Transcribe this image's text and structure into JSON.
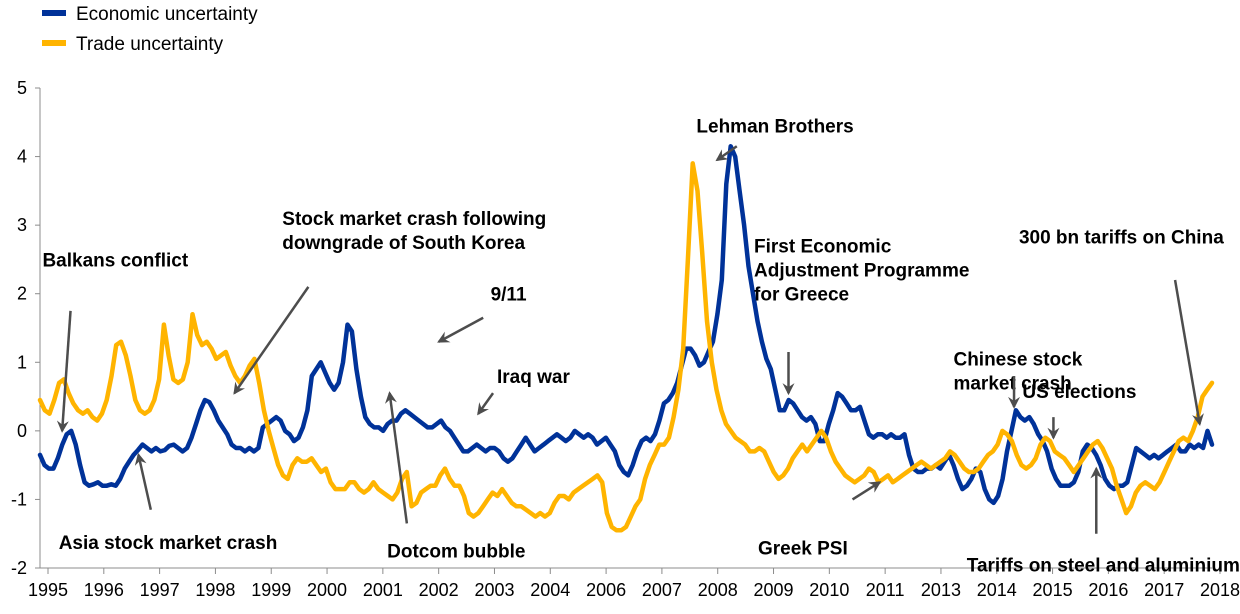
{
  "chart_data": {
    "type": "line",
    "title": "",
    "xlabel": "",
    "ylabel": "",
    "ylim": [
      -2,
      5
    ],
    "yticks": [
      -2,
      -1,
      0,
      1,
      2,
      3,
      4,
      5
    ],
    "xticks": [
      "1995",
      "1996",
      "1997",
      "1998",
      "1999",
      "2000",
      "2001",
      "2002",
      "2003",
      "2004",
      "2006",
      "2007",
      "2008",
      "2009",
      "2010",
      "2011",
      "2013",
      "2014",
      "2015",
      "2016",
      "2017",
      "2018"
    ],
    "legend_position": "top-left",
    "grid": false,
    "series": [
      {
        "name": "Economic uncertainty",
        "color": "#003299",
        "values": [
          -0.35,
          -0.5,
          -0.55,
          -0.55,
          -0.4,
          -0.2,
          -0.05,
          0.0,
          -0.2,
          -0.5,
          -0.75,
          -0.8,
          -0.78,
          -0.75,
          -0.8,
          -0.8,
          -0.78,
          -0.8,
          -0.7,
          -0.55,
          -0.45,
          -0.35,
          -0.28,
          -0.2,
          -0.25,
          -0.3,
          -0.25,
          -0.3,
          -0.28,
          -0.22,
          -0.2,
          -0.25,
          -0.3,
          -0.25,
          -0.1,
          0.1,
          0.3,
          0.45,
          0.42,
          0.3,
          0.15,
          0.05,
          -0.05,
          -0.2,
          -0.25,
          -0.25,
          -0.3,
          -0.25,
          -0.3,
          -0.25,
          0.05,
          0.1,
          0.15,
          0.2,
          0.15,
          0.0,
          -0.05,
          -0.15,
          -0.1,
          0.05,
          0.3,
          0.8,
          0.9,
          1.0,
          0.85,
          0.7,
          0.6,
          0.7,
          1.0,
          1.55,
          1.45,
          0.9,
          0.5,
          0.2,
          0.1,
          0.05,
          0.05,
          0.0,
          0.1,
          0.15,
          0.15,
          0.25,
          0.3,
          0.25,
          0.2,
          0.15,
          0.1,
          0.05,
          0.05,
          0.1,
          0.15,
          0.05,
          0.0,
          -0.1,
          -0.2,
          -0.3,
          -0.3,
          -0.25,
          -0.2,
          -0.25,
          -0.3,
          -0.25,
          -0.25,
          -0.3,
          -0.4,
          -0.45,
          -0.4,
          -0.3,
          -0.2,
          -0.1,
          -0.2,
          -0.3,
          -0.25,
          -0.2,
          -0.15,
          -0.1,
          -0.05,
          -0.1,
          -0.15,
          -0.1,
          0.0,
          -0.05,
          -0.1,
          -0.05,
          -0.1,
          -0.2,
          -0.15,
          -0.1,
          -0.2,
          -0.3,
          -0.5,
          -0.6,
          -0.65,
          -0.5,
          -0.3,
          -0.15,
          -0.1,
          -0.15,
          -0.05,
          0.15,
          0.4,
          0.45,
          0.55,
          0.7,
          0.95,
          1.2,
          1.2,
          1.1,
          0.95,
          1.0,
          1.15,
          1.3,
          1.7,
          2.2,
          3.6,
          4.15,
          4.0,
          3.5,
          3.0,
          2.4,
          2.0,
          1.6,
          1.3,
          1.05,
          0.9,
          0.6,
          0.3,
          0.3,
          0.45,
          0.4,
          0.3,
          0.2,
          0.15,
          0.2,
          0.1,
          -0.15,
          -0.15,
          0.1,
          0.3,
          0.55,
          0.5,
          0.4,
          0.3,
          0.3,
          0.35,
          0.15,
          -0.05,
          -0.1,
          -0.05,
          -0.05,
          -0.1,
          -0.05,
          -0.1,
          -0.1,
          -0.05,
          -0.35,
          -0.55,
          -0.6,
          -0.6,
          -0.55,
          -0.55,
          -0.5,
          -0.55,
          -0.45,
          -0.35,
          -0.5,
          -0.7,
          -0.85,
          -0.8,
          -0.7,
          -0.55,
          -0.6,
          -0.85,
          -1.0,
          -1.05,
          -0.95,
          -0.7,
          -0.3,
          0.0,
          0.3,
          0.2,
          0.15,
          0.2,
          0.1,
          -0.05,
          -0.15,
          -0.3,
          -0.55,
          -0.7,
          -0.8,
          -0.8,
          -0.8,
          -0.75,
          -0.6,
          -0.3,
          -0.2,
          -0.25,
          -0.35,
          -0.5,
          -0.7,
          -0.8,
          -0.85,
          -0.8,
          -0.8,
          -0.75,
          -0.5,
          -0.25,
          -0.3,
          -0.35,
          -0.4,
          -0.35,
          -0.4,
          -0.35,
          -0.3,
          -0.25,
          -0.2,
          -0.3,
          -0.3,
          -0.2,
          -0.25,
          -0.2,
          -0.25,
          0.0,
          -0.2
        ]
      },
      {
        "name": "Trade uncertainty",
        "color": "#FFB400",
        "values": [
          0.45,
          0.3,
          0.25,
          0.45,
          0.7,
          0.75,
          0.55,
          0.4,
          0.3,
          0.25,
          0.3,
          0.2,
          0.15,
          0.25,
          0.45,
          0.8,
          1.25,
          1.3,
          1.1,
          0.8,
          0.45,
          0.3,
          0.25,
          0.3,
          0.45,
          0.75,
          1.55,
          1.1,
          0.75,
          0.7,
          0.75,
          1.0,
          1.7,
          1.4,
          1.25,
          1.3,
          1.2,
          1.05,
          1.1,
          1.15,
          0.95,
          0.8,
          0.7,
          0.8,
          0.95,
          1.05,
          0.7,
          0.3,
          0.0,
          -0.25,
          -0.5,
          -0.65,
          -0.7,
          -0.5,
          -0.4,
          -0.45,
          -0.45,
          -0.4,
          -0.5,
          -0.6,
          -0.55,
          -0.75,
          -0.85,
          -0.85,
          -0.85,
          -0.75,
          -0.75,
          -0.85,
          -0.9,
          -0.85,
          -0.75,
          -0.85,
          -0.9,
          -0.95,
          -1.0,
          -0.9,
          -0.7,
          -0.6,
          -1.1,
          -1.05,
          -0.9,
          -0.85,
          -0.8,
          -0.8,
          -0.65,
          -0.55,
          -0.7,
          -0.8,
          -0.8,
          -0.95,
          -1.2,
          -1.25,
          -1.2,
          -1.1,
          -1.0,
          -0.9,
          -0.95,
          -0.85,
          -0.95,
          -1.05,
          -1.1,
          -1.1,
          -1.15,
          -1.2,
          -1.25,
          -1.2,
          -1.25,
          -1.2,
          -1.05,
          -0.95,
          -0.95,
          -1.0,
          -0.9,
          -0.85,
          -0.8,
          -0.75,
          -0.7,
          -0.65,
          -0.75,
          -1.2,
          -1.4,
          -1.45,
          -1.45,
          -1.4,
          -1.25,
          -1.1,
          -1.0,
          -0.7,
          -0.5,
          -0.35,
          -0.2,
          -0.2,
          -0.1,
          0.2,
          0.6,
          1.2,
          2.5,
          3.9,
          3.5,
          2.6,
          1.6,
          1.0,
          0.6,
          0.3,
          0.1,
          0.0,
          -0.1,
          -0.15,
          -0.2,
          -0.3,
          -0.3,
          -0.25,
          -0.3,
          -0.45,
          -0.6,
          -0.7,
          -0.65,
          -0.55,
          -0.4,
          -0.3,
          -0.2,
          -0.3,
          -0.2,
          -0.1,
          0.0,
          -0.1,
          -0.3,
          -0.45,
          -0.55,
          -0.65,
          -0.7,
          -0.75,
          -0.7,
          -0.65,
          -0.55,
          -0.6,
          -0.75,
          -0.7,
          -0.65,
          -0.75,
          -0.7,
          -0.65,
          -0.6,
          -0.55,
          -0.5,
          -0.45,
          -0.5,
          -0.55,
          -0.5,
          -0.45,
          -0.4,
          -0.3,
          -0.35,
          -0.45,
          -0.55,
          -0.6,
          -0.6,
          -0.55,
          -0.45,
          -0.35,
          -0.3,
          -0.2,
          0.0,
          -0.05,
          -0.15,
          -0.35,
          -0.5,
          -0.55,
          -0.5,
          -0.4,
          -0.2,
          -0.1,
          -0.15,
          -0.3,
          -0.35,
          -0.4,
          -0.5,
          -0.6,
          -0.5,
          -0.4,
          -0.3,
          -0.2,
          -0.15,
          -0.25,
          -0.4,
          -0.55,
          -0.8,
          -1.0,
          -1.2,
          -1.1,
          -0.9,
          -0.8,
          -0.75,
          -0.8,
          -0.85,
          -0.75,
          -0.6,
          -0.45,
          -0.3,
          -0.15,
          -0.1,
          -0.15,
          0.0,
          0.2,
          0.5,
          0.6,
          0.7
        ]
      }
    ],
    "annotations": [
      {
        "text": [
          "Balkans conflict"
        ],
        "label_x": 1995.05,
        "label_y": 2.4,
        "arrow_from": [
          1995.62,
          1.75
        ],
        "arrow_to": [
          1995.45,
          0.0
        ]
      },
      {
        "text": [
          "Asia stock market crash"
        ],
        "label_x": 1995.38,
        "label_y": -1.72,
        "arrow_from": [
          1997.25,
          -1.15
        ],
        "arrow_to": [
          1997.0,
          -0.35
        ]
      },
      {
        "text": [
          "Stock market crash following",
          "downgrade of South Korea"
        ],
        "label_x": 1999.92,
        "label_y": 3.0,
        "arrow_from": [
          2000.45,
          2.1
        ],
        "arrow_to": [
          1998.95,
          0.55
        ]
      },
      {
        "text": [
          "Dotcom bubble"
        ],
        "label_x": 2002.05,
        "label_y": -1.85,
        "arrow_from": [
          2002.45,
          -1.35
        ],
        "arrow_to": [
          2002.1,
          0.55
        ]
      },
      {
        "text": [
          "9/11"
        ],
        "label_x": 2004.15,
        "label_y": 1.9,
        "arrow_from": [
          2004.0,
          1.65
        ],
        "arrow_to": [
          2003.1,
          1.3
        ]
      },
      {
        "text": [
          "Iraq war"
        ],
        "label_x": 2004.28,
        "label_y": 0.7,
        "arrow_from": [
          2004.2,
          0.55
        ],
        "arrow_to": [
          2003.9,
          0.25
        ]
      },
      {
        "text": [
          "Lehman Brothers"
        ],
        "label_x": 2008.33,
        "label_y": 4.35,
        "arrow_from": [
          2009.15,
          4.15
        ],
        "arrow_to": [
          2008.75,
          3.95
        ]
      },
      {
        "text": [
          "First Economic",
          "Adjustment Programme",
          "for Greece"
        ],
        "label_x": 2009.5,
        "label_y": 2.6,
        "arrow_from": [
          2010.2,
          1.15
        ],
        "arrow_to": [
          2010.2,
          0.55
        ]
      },
      {
        "text": [
          "Greek PSI"
        ],
        "label_x": 2009.58,
        "label_y": -1.8,
        "arrow_from": [
          2011.5,
          -1.0
        ],
        "arrow_to": [
          2012.05,
          -0.75
        ]
      },
      {
        "text": [
          "Chinese stock",
          "market crash"
        ],
        "label_x": 2013.55,
        "label_y": 0.95,
        "arrow_from": [
          2014.78,
          0.8
        ],
        "arrow_to": [
          2014.78,
          0.35
        ]
      },
      {
        "text": [
          "US elections"
        ],
        "label_x": 2014.95,
        "label_y": 0.48,
        "arrow_from": [
          2015.58,
          0.2
        ],
        "arrow_to": [
          2015.58,
          -0.1
        ]
      },
      {
        "text": [
          "Tariffs on steel and aluminium"
        ],
        "label_x": 2013.82,
        "label_y": -2.05,
        "arrow_from": [
          2016.45,
          -1.5
        ],
        "arrow_to": [
          2016.45,
          -0.55
        ]
      },
      {
        "text": [
          "300 bn tariffs on China"
        ],
        "label_x": 2014.88,
        "label_y": 2.73,
        "arrow_from": [
          2018.05,
          2.2
        ],
        "arrow_to": [
          2018.55,
          0.1
        ]
      }
    ]
  }
}
